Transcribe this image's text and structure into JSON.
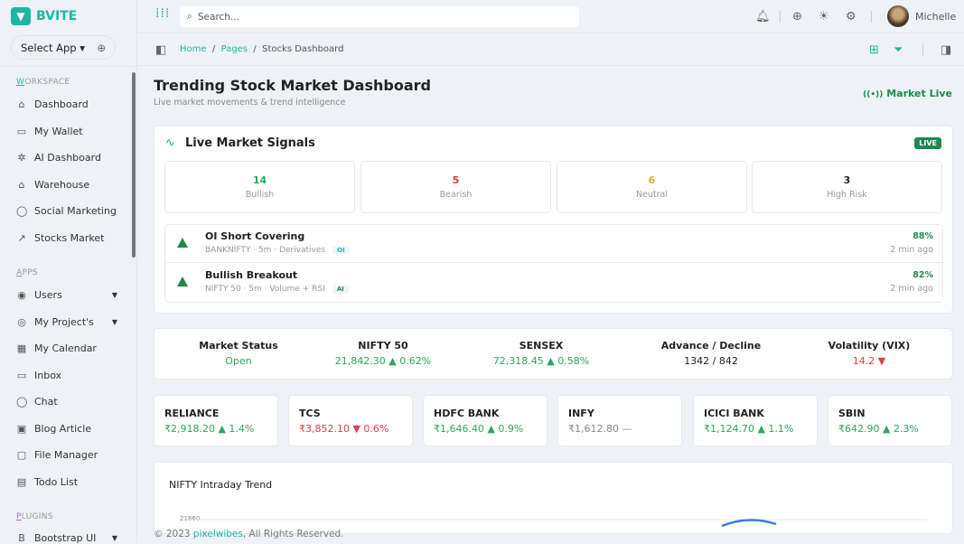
{
  "brand": {
    "name": "BVITE",
    "select_app": "Select App"
  },
  "sidebar": {
    "sections": [
      {
        "first": "W",
        "rest": "ORKSPACE"
      },
      {
        "first": "A",
        "rest": "PPS"
      },
      {
        "first": "P",
        "rest": "LUGINS"
      }
    ],
    "items": [
      {
        "label": "Dashboard",
        "icon": "⌂"
      },
      {
        "label": "My Wallet",
        "icon": "▭"
      },
      {
        "label": "AI Dashboard",
        "icon": "✲"
      },
      {
        "label": "Warehouse",
        "icon": "⌂"
      },
      {
        "label": "Social Marketing",
        "icon": "◯"
      },
      {
        "label": "Stocks Market",
        "icon": "↗"
      },
      {
        "label": "Users",
        "icon": "◉"
      },
      {
        "label": "My Project's",
        "icon": "◎"
      },
      {
        "label": "My Calendar",
        "icon": "▦"
      },
      {
        "label": "Inbox",
        "icon": "▭"
      },
      {
        "label": "Chat",
        "icon": "◯"
      },
      {
        "label": "Blog Article",
        "icon": "▣"
      },
      {
        "label": "File Manager",
        "icon": "▢"
      },
      {
        "label": "Todo List",
        "icon": "▤"
      },
      {
        "label": "Bootstrap UI",
        "icon": "B"
      }
    ]
  },
  "header": {
    "search_placeholder": "Search...",
    "user": "Michelle"
  },
  "breadcrumb": {
    "home": "Home",
    "pages": "Pages",
    "current": "Stocks Dashboard"
  },
  "page": {
    "title": "Trending Stock Market Dashboard",
    "subtitle": "Live market movements & trend intelligence",
    "market_live": "Market Live"
  },
  "signals": {
    "title": "Live Market Signals",
    "badge": "LIVE",
    "stats": [
      {
        "value": "14",
        "label": "Bullish"
      },
      {
        "value": "5",
        "label": "Bearish"
      },
      {
        "value": "6",
        "label": "Neutral"
      },
      {
        "value": "3",
        "label": "High Risk"
      }
    ],
    "list": [
      {
        "title": "OI Short Covering",
        "meta": "BANKNIFTY · 5m · Derivatives",
        "tag": "OI",
        "pct": "88%",
        "time": "2 min ago"
      },
      {
        "title": "Bullish Breakout",
        "meta": "NIFTY 50 · 5m · Volume + RSI",
        "tag": "AI",
        "pct": "82%",
        "time": "2 min ago"
      }
    ]
  },
  "market": [
    {
      "label": "Market Status",
      "value": "Open"
    },
    {
      "label": "NIFTY 50",
      "value": "21,842.30 ▲ 0.62%"
    },
    {
      "label": "SENSEX",
      "value": "72,318.45 ▲ 0.58%"
    },
    {
      "label": "Advance / Decline",
      "value": "1342 / 842"
    },
    {
      "label": "Volatility (VIX)",
      "value": "14.2 ▼"
    }
  ],
  "stocks": [
    {
      "name": "RELIANCE",
      "value": "₹2,918.20 ▲ 1.4%"
    },
    {
      "name": "TCS",
      "value": "₹3,852.10 ▼ 0.6%"
    },
    {
      "name": "HDFC BANK",
      "value": "₹1,646.40 ▲ 0.9%"
    },
    {
      "name": "INFY",
      "value": "₹1,612.80 —"
    },
    {
      "name": "ICICI BANK",
      "value": "₹1,124.70 ▲ 1.1%"
    },
    {
      "name": "SBIN",
      "value": "₹642.90 ▲ 2.3%"
    }
  ],
  "chart_data": {
    "type": "line",
    "title": "NIFTY Intraday Trend",
    "y_ticks_visible": [
      "21860"
    ],
    "series_color": "#3b7ddd"
  },
  "footer": {
    "prefix": "© 2023 ",
    "link": "pixelwibes",
    "suffix": ", All Rights Reserved."
  },
  "colors": {
    "brand": "#1fb5a5",
    "up": "#2fa45f",
    "down": "#e03e48",
    "neutral": "#f0a830"
  }
}
